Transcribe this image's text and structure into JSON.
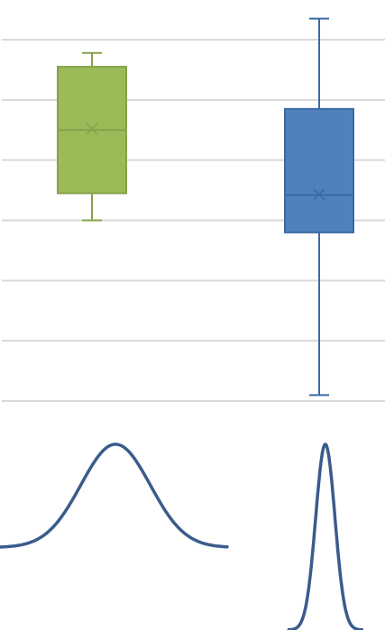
{
  "chart_data": [
    {
      "type": "box",
      "title": "",
      "xlabel": "",
      "ylabel": "",
      "ylim": [
        0,
        6
      ],
      "grid": true,
      "gridlines": [
        0,
        1,
        2,
        3,
        4,
        5,
        6
      ],
      "boxes": [
        {
          "min": 3.0,
          "q1": 3.45,
          "median": 4.5,
          "q3": 5.55,
          "max": 5.78,
          "mean": 4.52,
          "color": "#9bbb59",
          "stroke": "#86a14a"
        },
        {
          "min": 0.1,
          "q1": 2.8,
          "median": 3.42,
          "q3": 4.85,
          "max": 6.35,
          "mean": 3.43,
          "color": "#4f81bd",
          "stroke": "#3c6aa3"
        }
      ]
    },
    {
      "type": "line",
      "title": "",
      "xlabel": "",
      "ylabel": "",
      "line_color": "#3a5c8c",
      "series": [
        {
          "center": 0.3,
          "sigma": 0.09,
          "ymin": 0.4,
          "ymax": 0.9,
          "x": [
            0.0,
            0.59
          ]
        },
        {
          "center": 0.845,
          "sigma": 0.025,
          "ymin": 0.0,
          "ymax": 0.9,
          "x": [
            0.75,
            0.94
          ]
        }
      ]
    }
  ]
}
